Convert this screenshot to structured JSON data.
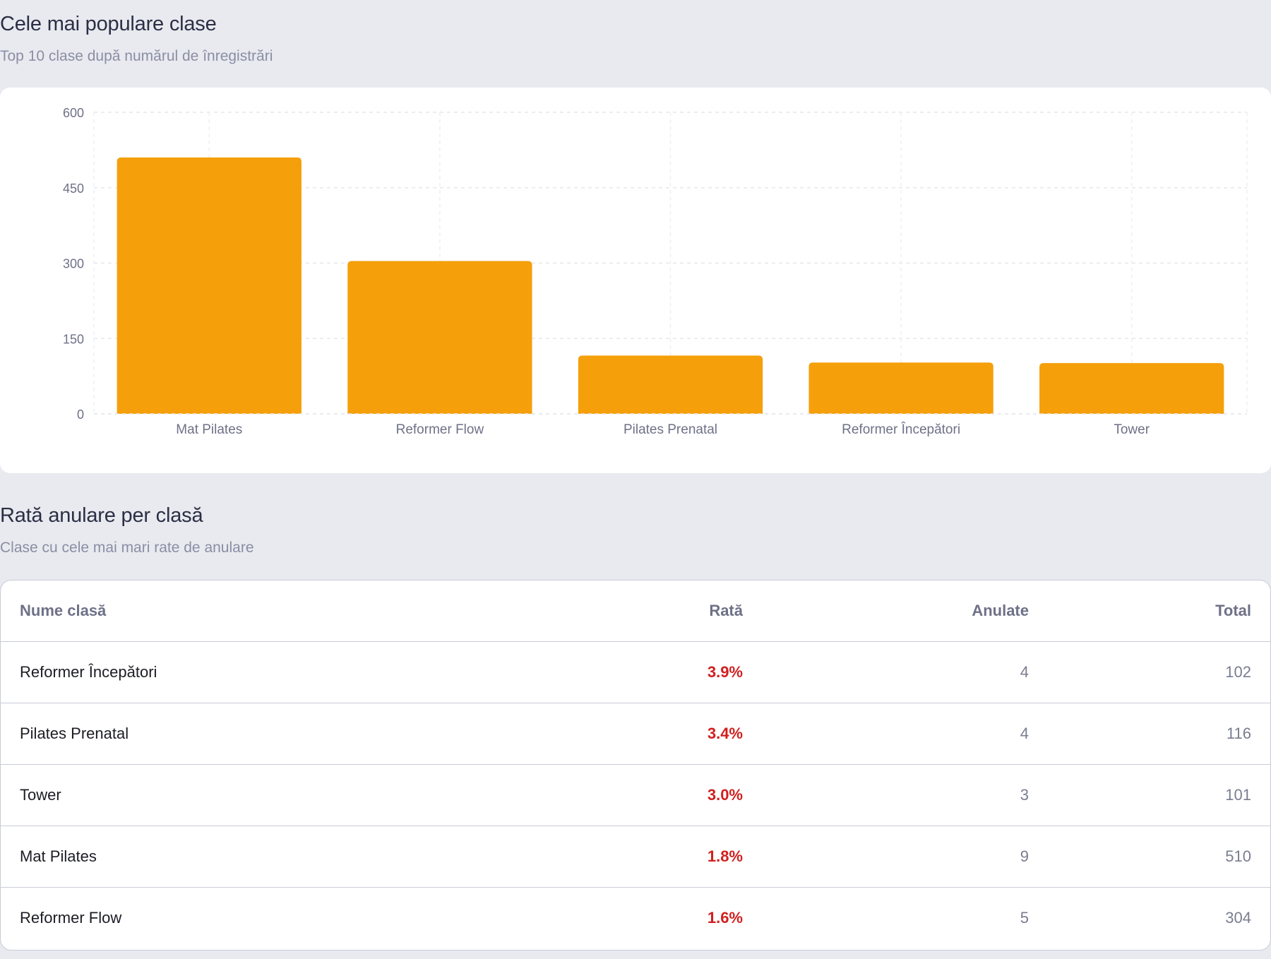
{
  "popular": {
    "title": "Cele mai populare clase",
    "subtitle": "Top 10 clase după numărul de înregistrări"
  },
  "chart_data": {
    "type": "bar",
    "categories": [
      "Mat Pilates",
      "Reformer Flow",
      "Pilates Prenatal",
      "Reformer Începători",
      "Tower"
    ],
    "values": [
      510,
      304,
      116,
      102,
      101
    ],
    "title": "",
    "xlabel": "",
    "ylabel": "",
    "ylim": [
      0,
      600
    ],
    "yticks": [
      0,
      150,
      300,
      450,
      600
    ],
    "grid": true,
    "bar_color": "#f59f0a"
  },
  "cancel": {
    "title": "Rată anulare per clasă",
    "subtitle": "Clase cu cele mai mari rate de anulare",
    "columns": {
      "name": "Nume clasă",
      "rate": "Rată",
      "cancelled": "Anulate",
      "total": "Total"
    },
    "rows": [
      {
        "name": "Reformer Începători",
        "rate": "3.9%",
        "cancelled": "4",
        "total": "102"
      },
      {
        "name": "Pilates Prenatal",
        "rate": "3.4%",
        "cancelled": "4",
        "total": "116"
      },
      {
        "name": "Tower",
        "rate": "3.0%",
        "cancelled": "3",
        "total": "101"
      },
      {
        "name": "Mat Pilates",
        "rate": "1.8%",
        "cancelled": "9",
        "total": "510"
      },
      {
        "name": "Reformer Flow",
        "rate": "1.6%",
        "cancelled": "5",
        "total": "304"
      }
    ],
    "rate_color": "#d01f1f"
  }
}
